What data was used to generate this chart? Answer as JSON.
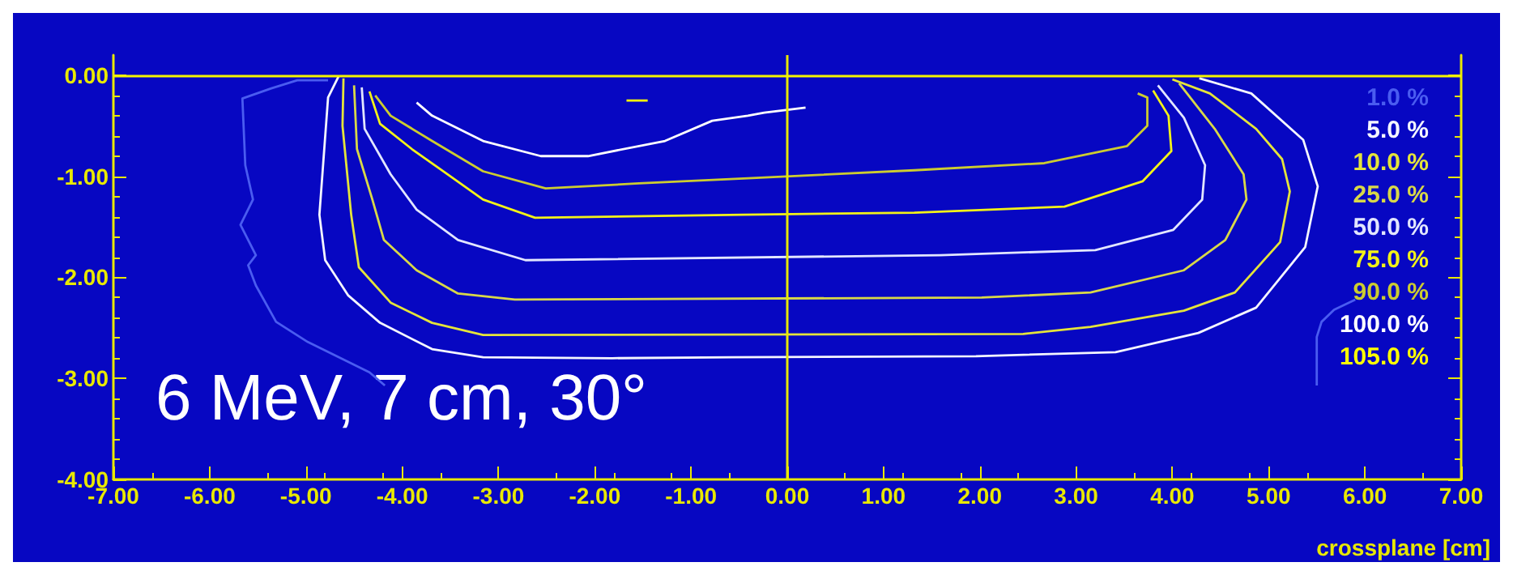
{
  "chart_data": {
    "type": "line",
    "xlabel": "crossplane [cm]",
    "annotations": [
      "6 MeV, 7 cm, 30°"
    ],
    "xlim": [
      -7,
      7
    ],
    "ylim": [
      -4,
      0.2
    ],
    "xticks": [
      {
        "value": -7,
        "label": "-7.00"
      },
      {
        "value": -6,
        "label": "-6.00"
      },
      {
        "value": -5,
        "label": "-5.00"
      },
      {
        "value": -4,
        "label": "-4.00"
      },
      {
        "value": -3,
        "label": "-3.00"
      },
      {
        "value": -2,
        "label": "-2.00"
      },
      {
        "value": -1,
        "label": "-1.00"
      },
      {
        "value": 0,
        "label": "0.00"
      },
      {
        "value": 1,
        "label": "1.00"
      },
      {
        "value": 2,
        "label": "2.00"
      },
      {
        "value": 3,
        "label": "3.00"
      },
      {
        "value": 4,
        "label": "4.00"
      },
      {
        "value": 5,
        "label": "5.00"
      },
      {
        "value": 6,
        "label": "6.00"
      },
      {
        "value": 7,
        "label": "7.00"
      }
    ],
    "yticks": [
      {
        "value": 0,
        "label": "0.00"
      },
      {
        "value": -1,
        "label": "-1.00"
      },
      {
        "value": -2,
        "label": "-2.00"
      },
      {
        "value": -3,
        "label": "-3.00"
      },
      {
        "value": -4,
        "label": "-4.00"
      }
    ],
    "grid": false,
    "legend": "right",
    "marker": "none",
    "line_style": "solid",
    "ref_lines": [
      {
        "axis": "x",
        "value": 0,
        "color": "#e8e800"
      },
      {
        "axis": "y",
        "value": 0,
        "color": "#f4f400"
      }
    ],
    "series": [
      {
        "name": "1.0 %",
        "color": "#4a5cf0",
        "x": [
          -4.77,
          -5.09,
          -5.36,
          -5.66,
          -5.63,
          -5.55,
          -5.68,
          -5.52,
          -5.6,
          -5.52,
          -5.31,
          -4.98,
          -4.66,
          -4.34,
          -4.18,
          4.5,
          5.5,
          5.5,
          5.55,
          5.68,
          5.9
        ],
        "values": [
          -0.05,
          -0.05,
          -0.13,
          -0.23,
          -0.89,
          -1.23,
          -1.48,
          -1.78,
          -1.88,
          -2.08,
          -2.44,
          -2.64,
          -2.79,
          -2.94,
          -3.07,
          null,
          -3.07,
          -2.59,
          -2.44,
          -2.32,
          -2.22
        ]
      },
      {
        "name": "5.0 %",
        "color": "#f4f6ff",
        "x": [
          -4.66,
          -4.77,
          -4.86,
          -4.8,
          -4.56,
          -4.23,
          -3.69,
          -3.16,
          -1.82,
          -0.57,
          1.96,
          3.41,
          4.27,
          4.87,
          5.38,
          5.51,
          5.36,
          4.82,
          4.28
        ],
        "values": [
          -0.01,
          -0.22,
          -1.38,
          -1.83,
          -2.18,
          -2.45,
          -2.71,
          -2.79,
          -2.8,
          -2.79,
          -2.78,
          -2.74,
          -2.55,
          -2.3,
          -1.7,
          -1.1,
          -0.64,
          -0.18,
          -0.03
        ]
      },
      {
        "name": "10.0 %",
        "color": "#e4e43a",
        "x": [
          -4.61,
          -4.62,
          -4.53,
          -4.45,
          -4.12,
          -3.69,
          -3.16,
          2.45,
          3.15,
          4.12,
          4.65,
          5.12,
          5.22,
          5.14,
          4.87,
          4.39,
          4.0
        ],
        "values": [
          -0.03,
          -0.5,
          -1.38,
          -1.9,
          -2.25,
          -2.45,
          -2.57,
          -2.56,
          -2.49,
          -2.33,
          -2.15,
          -1.65,
          -1.15,
          -0.83,
          -0.53,
          -0.18,
          -0.04
        ]
      },
      {
        "name": "25.0 %",
        "color": "#d8d848",
        "x": [
          -4.5,
          -4.47,
          -4.31,
          -4.19,
          -3.85,
          -3.42,
          -2.83,
          2.02,
          3.15,
          4.12,
          4.55,
          4.77,
          4.74,
          4.44,
          4.07
        ],
        "values": [
          -0.1,
          -0.73,
          -1.23,
          -1.63,
          -1.93,
          -2.16,
          -2.22,
          -2.2,
          -2.15,
          -1.93,
          -1.63,
          -1.23,
          -0.98,
          -0.53,
          -0.08
        ]
      },
      {
        "name": "50.0 %",
        "color": "#e2e6ff",
        "x": [
          -4.42,
          -4.39,
          -4.12,
          -3.85,
          -3.42,
          -2.72,
          1.59,
          3.2,
          4.01,
          4.31,
          4.34,
          4.12,
          3.85
        ],
        "values": [
          -0.12,
          -0.53,
          -0.98,
          -1.33,
          -1.63,
          -1.83,
          -1.78,
          -1.73,
          -1.53,
          -1.23,
          -0.89,
          -0.42,
          -0.1
        ]
      },
      {
        "name": "75.0 %",
        "color": "#f2f218",
        "x": [
          -4.34,
          -4.23,
          -3.9,
          -3.53,
          -3.16,
          -2.62,
          -0.46,
          1.32,
          2.88,
          3.69,
          3.99,
          3.96,
          3.8
        ],
        "values": [
          -0.16,
          -0.48,
          -0.73,
          -0.98,
          -1.23,
          -1.41,
          -1.38,
          -1.36,
          -1.3,
          -1.05,
          -0.75,
          -0.4,
          -0.15
        ]
      },
      {
        "name": "90.0 %",
        "color": "#cccc30",
        "x": [
          -4.28,
          -4.12,
          -3.69,
          -3.16,
          -2.51,
          -1.54,
          -0.41,
          1.32,
          2.67,
          3.53,
          3.74,
          3.74,
          3.64
        ],
        "values": [
          -0.2,
          -0.4,
          -0.65,
          -0.95,
          -1.12,
          -1.07,
          -1.02,
          -0.94,
          -0.87,
          -0.7,
          -0.5,
          -0.22,
          -0.18
        ]
      },
      {
        "name": "100.0 %",
        "color": "#ffffff",
        "x": [
          -3.85,
          -3.69,
          -3.16,
          -2.56,
          -2.07,
          -1.27,
          -0.78,
          -0.41,
          -0.24,
          0.19
        ],
        "values": [
          -0.27,
          -0.4,
          -0.65,
          -0.8,
          -0.8,
          -0.65,
          -0.45,
          -0.4,
          -0.37,
          -0.32
        ]
      },
      {
        "name": "105.0 %",
        "color": "#ffff00",
        "x": [
          -1.67,
          -1.45
        ],
        "values": [
          -0.25,
          -0.25
        ]
      }
    ]
  }
}
